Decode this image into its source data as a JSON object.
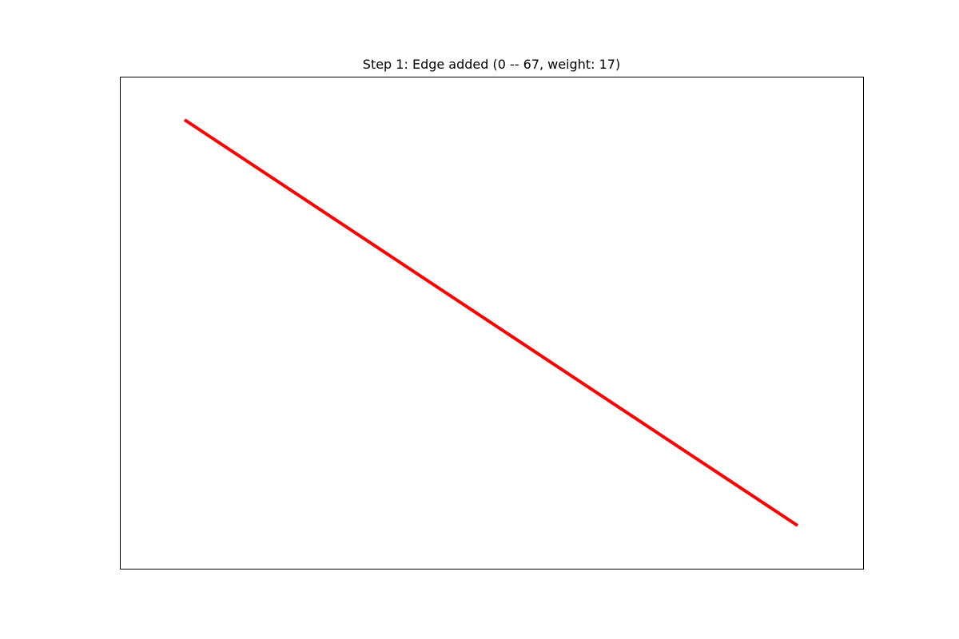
{
  "figure": {
    "title": "Step 1: Edge added (0 -- 67, weight: 17)"
  },
  "graph": {
    "edges": [
      {
        "from": "0",
        "to": "67",
        "weight": 17,
        "color": "#ff0000"
      }
    ]
  }
}
